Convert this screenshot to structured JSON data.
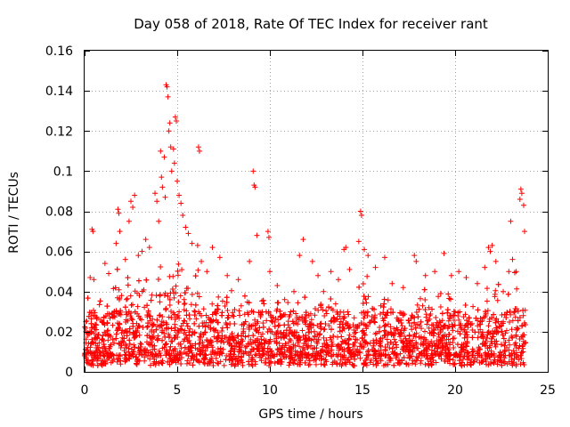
{
  "chart_data": {
    "type": "scatter",
    "title": "Day 058 of 2018, Rate Of TEC Index for receiver rant",
    "xlabel": "GPS time / hours",
    "ylabel": "ROTI / TECUs",
    "xlim": [
      0,
      25
    ],
    "ylim": [
      0,
      0.16
    ],
    "xticks": [
      0,
      5,
      10,
      15,
      20,
      25
    ],
    "yticks": [
      0,
      0.02,
      0.04,
      0.06,
      0.08,
      0.1,
      0.12,
      0.14,
      0.16
    ],
    "xtick_labels": [
      "0",
      "5",
      "10",
      "15",
      "20",
      "25"
    ],
    "ytick_labels": [
      "0",
      "0.02",
      "0.04",
      "0.06",
      "0.08",
      "0.1",
      "0.12",
      "0.14",
      "0.16"
    ],
    "grid": true,
    "marker": "plus",
    "color": "#ff0000",
    "bulk_band": {
      "x_range": [
        0,
        23.8
      ],
      "y_min": 0.003,
      "y_core": [
        0.008,
        0.03
      ],
      "count": 3200
    },
    "series": [
      {
        "name": "ROTI",
        "points": [
          [
            0.3,
            0.047
          ],
          [
            0.4,
            0.071
          ],
          [
            0.45,
            0.07
          ],
          [
            0.5,
            0.046
          ],
          [
            1.1,
            0.054
          ],
          [
            1.3,
            0.049
          ],
          [
            1.7,
            0.064
          ],
          [
            1.8,
            0.081
          ],
          [
            1.85,
            0.079
          ],
          [
            1.9,
            0.07
          ],
          [
            2.2,
            0.056
          ],
          [
            2.4,
            0.075
          ],
          [
            2.5,
            0.085
          ],
          [
            2.6,
            0.082
          ],
          [
            2.7,
            0.088
          ],
          [
            2.9,
            0.058
          ],
          [
            3.1,
            0.06
          ],
          [
            3.3,
            0.066
          ],
          [
            3.5,
            0.062
          ],
          [
            3.8,
            0.089
          ],
          [
            3.9,
            0.085
          ],
          [
            4.0,
            0.075
          ],
          [
            4.1,
            0.11
          ],
          [
            4.15,
            0.097
          ],
          [
            4.2,
            0.092
          ],
          [
            4.3,
            0.107
          ],
          [
            4.35,
            0.087
          ],
          [
            4.4,
            0.143
          ],
          [
            4.45,
            0.142
          ],
          [
            4.5,
            0.137
          ],
          [
            4.55,
            0.12
          ],
          [
            4.6,
            0.124
          ],
          [
            4.65,
            0.112
          ],
          [
            4.7,
            0.1
          ],
          [
            4.8,
            0.111
          ],
          [
            4.85,
            0.104
          ],
          [
            4.9,
            0.127
          ],
          [
            4.95,
            0.125
          ],
          [
            5.0,
            0.095
          ],
          [
            5.1,
            0.088
          ],
          [
            5.2,
            0.084
          ],
          [
            5.3,
            0.078
          ],
          [
            5.45,
            0.072
          ],
          [
            5.6,
            0.069
          ],
          [
            5.8,
            0.064
          ],
          [
            6.1,
            0.063
          ],
          [
            6.15,
            0.112
          ],
          [
            6.2,
            0.11
          ],
          [
            6.3,
            0.055
          ],
          [
            6.6,
            0.05
          ],
          [
            6.9,
            0.062
          ],
          [
            7.3,
            0.057
          ],
          [
            7.7,
            0.048
          ],
          [
            8.3,
            0.046
          ],
          [
            8.9,
            0.055
          ],
          [
            9.1,
            0.1
          ],
          [
            9.15,
            0.093
          ],
          [
            9.2,
            0.092
          ],
          [
            9.3,
            0.068
          ],
          [
            9.9,
            0.07
          ],
          [
            9.95,
            0.067
          ],
          [
            10.0,
            0.05
          ],
          [
            10.4,
            0.043
          ],
          [
            10.8,
            0.036
          ],
          [
            11.3,
            0.04
          ],
          [
            11.6,
            0.058
          ],
          [
            11.8,
            0.066
          ],
          [
            12.3,
            0.055
          ],
          [
            12.6,
            0.048
          ],
          [
            12.9,
            0.04
          ],
          [
            13.3,
            0.05
          ],
          [
            13.7,
            0.046
          ],
          [
            14.0,
            0.061
          ],
          [
            14.1,
            0.062
          ],
          [
            14.3,
            0.051
          ],
          [
            14.8,
            0.065
          ],
          [
            14.9,
            0.08
          ],
          [
            14.95,
            0.078
          ],
          [
            15.1,
            0.061
          ],
          [
            15.3,
            0.058
          ],
          [
            15.7,
            0.052
          ],
          [
            16.2,
            0.057
          ],
          [
            16.6,
            0.044
          ],
          [
            17.2,
            0.042
          ],
          [
            17.8,
            0.058
          ],
          [
            17.9,
            0.055
          ],
          [
            18.4,
            0.048
          ],
          [
            18.9,
            0.05
          ],
          [
            19.4,
            0.059
          ],
          [
            19.8,
            0.048
          ],
          [
            20.2,
            0.05
          ],
          [
            20.6,
            0.047
          ],
          [
            21.2,
            0.044
          ],
          [
            21.6,
            0.052
          ],
          [
            21.8,
            0.062
          ],
          [
            21.9,
            0.06
          ],
          [
            22.0,
            0.063
          ],
          [
            22.2,
            0.055
          ],
          [
            22.6,
            0.04
          ],
          [
            22.9,
            0.05
          ],
          [
            23.0,
            0.075
          ],
          [
            23.1,
            0.056
          ],
          [
            23.3,
            0.05
          ],
          [
            23.5,
            0.086
          ],
          [
            23.55,
            0.091
          ],
          [
            23.6,
            0.089
          ],
          [
            23.7,
            0.083
          ],
          [
            23.75,
            0.07
          ]
        ]
      }
    ]
  }
}
